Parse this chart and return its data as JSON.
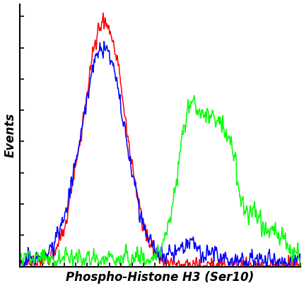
{
  "title": "",
  "xlabel": "Phospho-Histone H3 (Ser10)",
  "ylabel": "Events",
  "background_color": "#ffffff",
  "line_colors": [
    "red",
    "blue",
    "lime"
  ],
  "linewidth": 1.1,
  "figsize": [
    4.31,
    4.08
  ],
  "dpi": 100,
  "xlim": [
    0,
    1
  ],
  "ylim": [
    0,
    1.05
  ],
  "n_xticks": 26,
  "n_yticks": 9
}
